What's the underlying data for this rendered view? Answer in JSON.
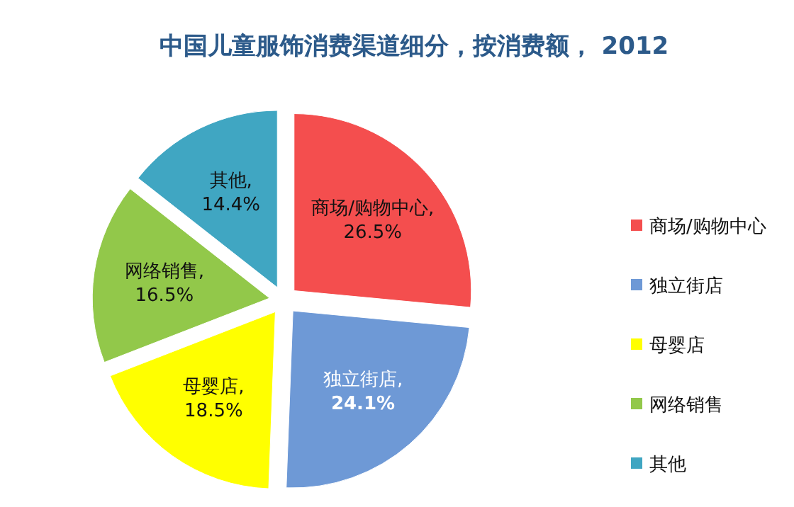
{
  "chart_data": {
    "type": "pie",
    "title": "中国儿童服饰消费渠道细分，按消费额， 2012",
    "categories": [
      "商场/购物中心",
      "独立街店",
      "母婴店",
      "网络销售",
      "其他"
    ],
    "values": [
      26.5,
      24.1,
      18.5,
      16.5,
      14.4
    ],
    "value_labels": [
      "商场/购物中心, 26.5%",
      "独立街店, 24.1%",
      "母婴店, 18.5%",
      "网络销售, 16.5%",
      "其他, 14.4%"
    ],
    "colors": [
      "#f44e4e",
      "#6e99d6",
      "#ffff00",
      "#92c84a",
      "#40a6c2"
    ],
    "legend": "right"
  }
}
